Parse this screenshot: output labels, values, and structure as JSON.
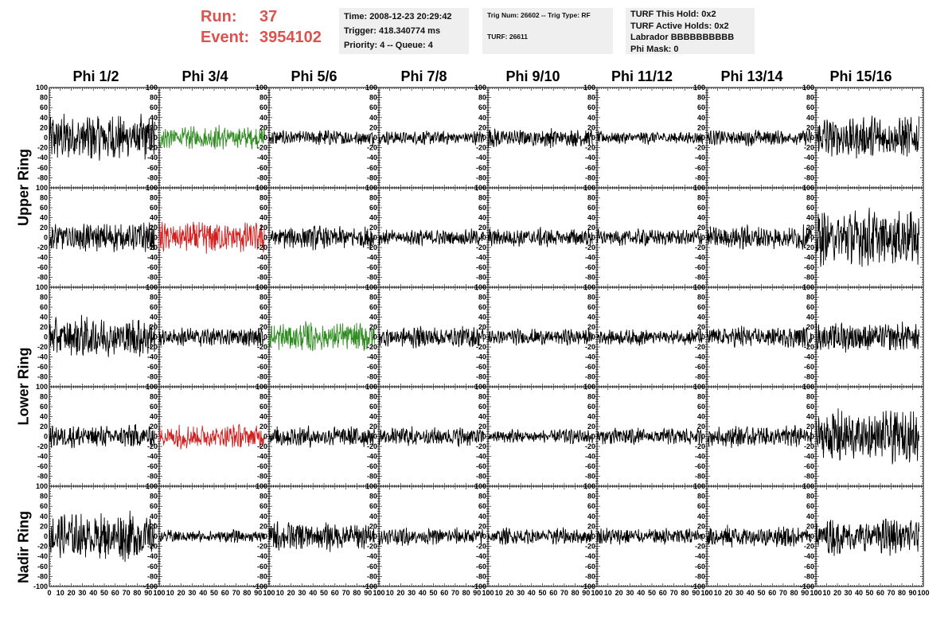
{
  "header": {
    "run_label": "Run:",
    "run_value": "37",
    "event_label": "Event:",
    "event_value": "3954102"
  },
  "info_box_1": {
    "time": "Time: 2008-12-23 20:29:42",
    "trigger": "Trigger: 418.340774 ms",
    "priority_queue": "Priority: 4 -- Queue: 4"
  },
  "info_box_2": {
    "trig": "Trig Num: 26602 -- Trig Type: RF",
    "turf": "TURF: 26611"
  },
  "info_box_3": {
    "turf_this_hold": "TURF This Hold: 0x2",
    "turf_active_holds": "TURF Active Holds: 0x2",
    "labrador": "Labrador BBBBBBBBBB",
    "phi_mask": "Phi Mask: 0"
  },
  "columns": [
    "Phi 1/2",
    "Phi 3/4",
    "Phi 5/6",
    "Phi 7/8",
    "Phi 9/10",
    "Phi 11/12",
    "Phi 13/14",
    "Phi 15/16"
  ],
  "row_labels": [
    "Upper Ring",
    "Lower Ring",
    "Nadir Ring"
  ],
  "colors": {
    "trace_default": "#000000",
    "trace_green": "#2e8b1f",
    "trace_red": "#d02020",
    "run_text": "#d9534f",
    "info_bg": "#efefef"
  },
  "chart_data": {
    "type": "line",
    "description_rows": 5,
    "description_cols": 8,
    "ylim": [
      -100,
      100
    ],
    "xlim": [
      0,
      100
    ],
    "ytick_labels": [
      "-100",
      "-80",
      "-60",
      "-40",
      "-20",
      "0",
      "20",
      "40",
      "60",
      "80",
      "100"
    ],
    "xtick_labels": [
      "0",
      "10",
      "20",
      "30",
      "40",
      "50",
      "60",
      "70",
      "80",
      "90",
      "100"
    ],
    "highlighted_panels": [
      {
        "row": 0,
        "col": 1,
        "color": "green"
      },
      {
        "row": 1,
        "col": 1,
        "color": "red"
      },
      {
        "row": 2,
        "col": 2,
        "color": "green"
      },
      {
        "row": 3,
        "col": 1,
        "color": "red"
      }
    ],
    "amplitudes": [
      [
        45,
        22,
        15,
        13,
        18,
        12,
        15,
        40
      ],
      [
        28,
        30,
        22,
        15,
        18,
        16,
        22,
        55
      ],
      [
        38,
        18,
        28,
        20,
        15,
        15,
        20,
        28
      ],
      [
        22,
        22,
        20,
        18,
        14,
        16,
        20,
        50
      ],
      [
        45,
        12,
        28,
        16,
        15,
        16,
        20,
        32
      ]
    ]
  }
}
